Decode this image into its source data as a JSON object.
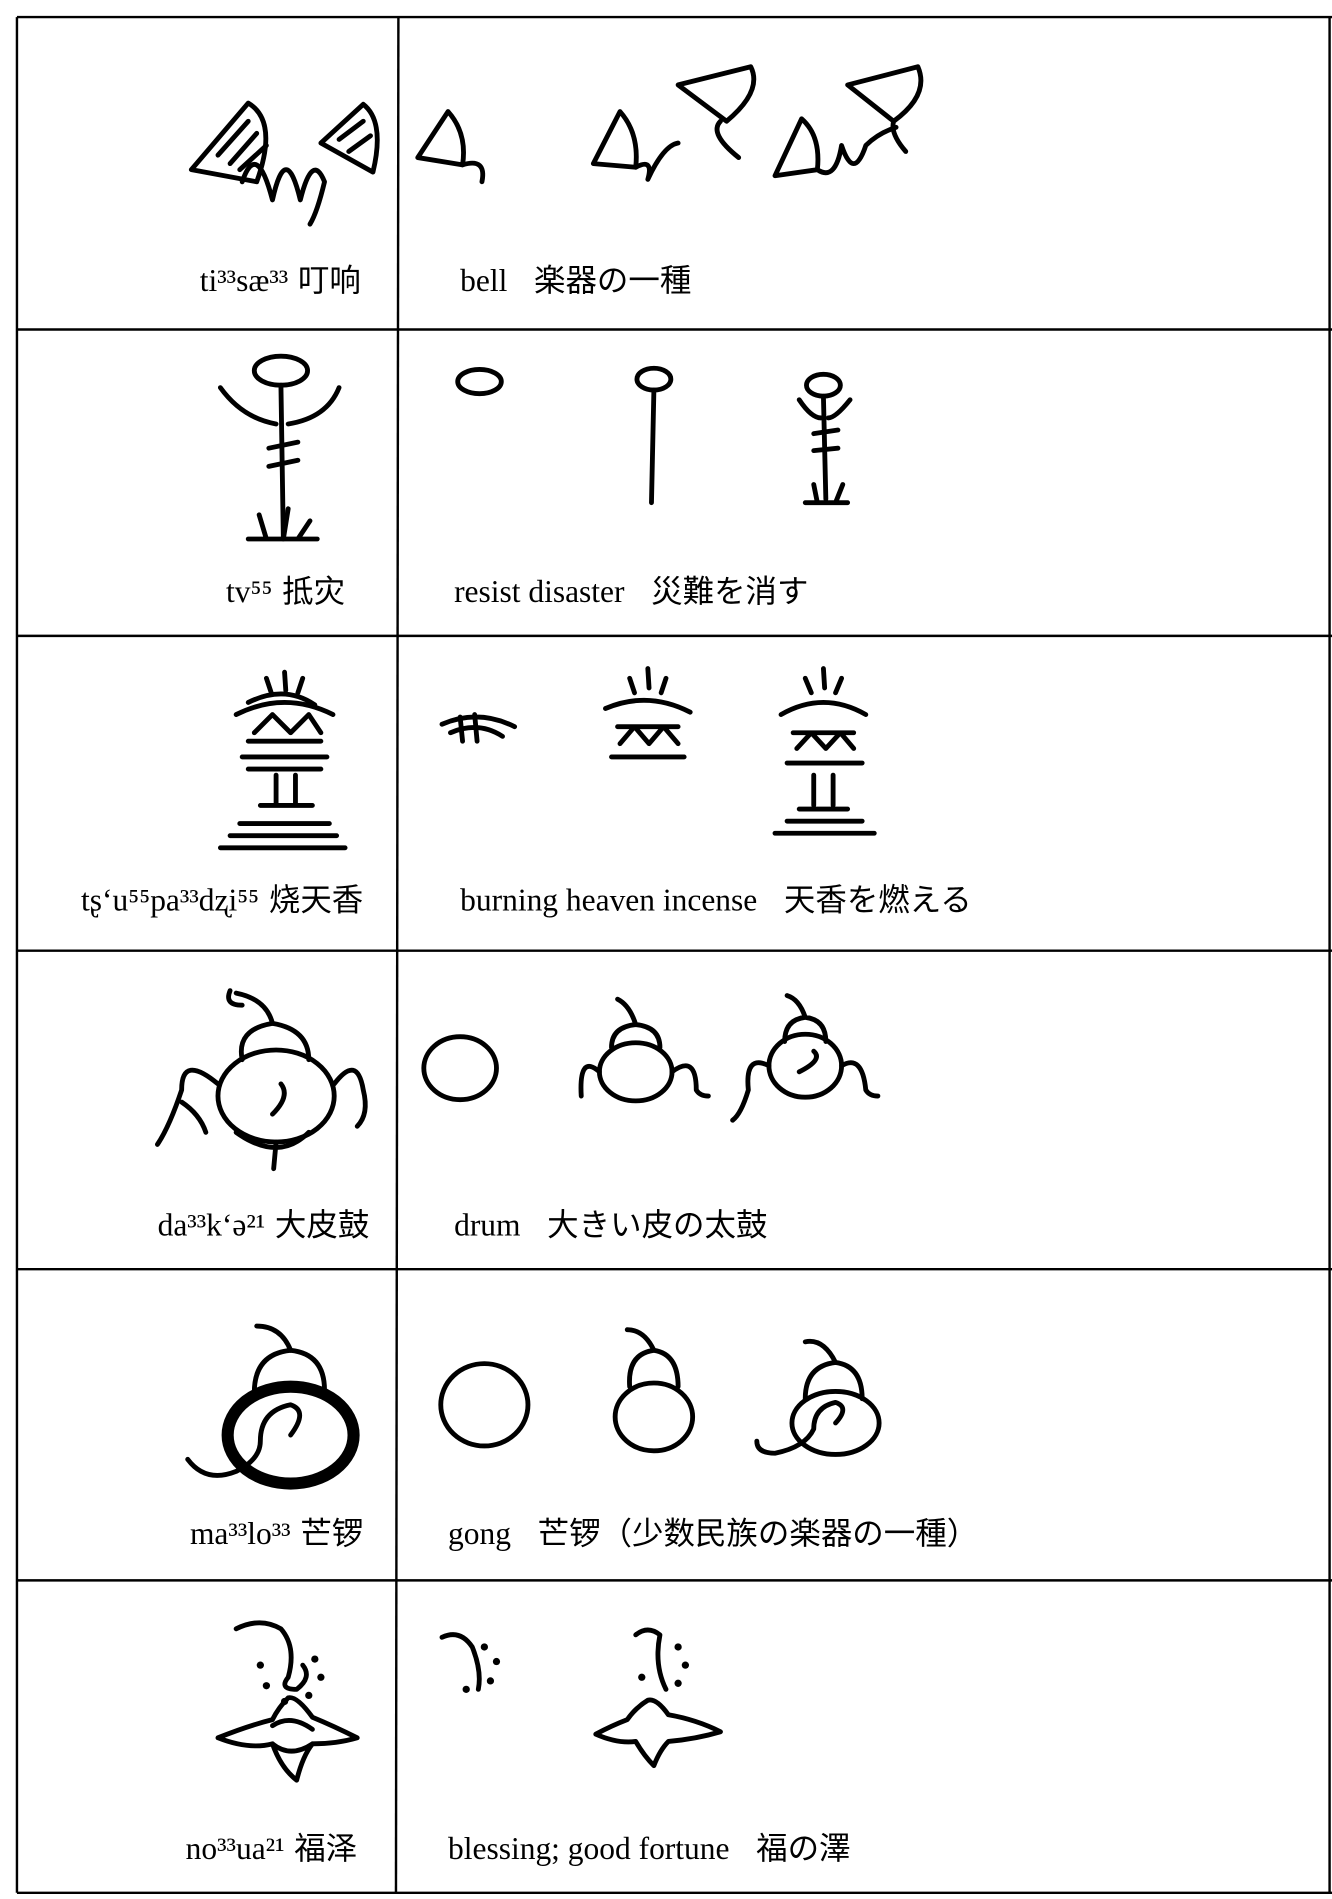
{
  "rows": [
    {
      "pronunciation": "ti³³sæ³³",
      "chinese": "叮响",
      "english": "bell",
      "japanese": "楽器の一種"
    },
    {
      "pronunciation": "tv⁵⁵",
      "chinese": "抵灾",
      "english": "resist disaster",
      "japanese": "災難を消す"
    },
    {
      "pronunciation": "tʂʻu⁵⁵pa³³dʐi⁵⁵",
      "chinese": "烧天香",
      "english": "burning heaven incense",
      "japanese": "天香を燃える"
    },
    {
      "pronunciation": "da³³kʻə²¹",
      "chinese": "大皮鼓",
      "english": "drum",
      "japanese": "大きい皮の太鼓"
    },
    {
      "pronunciation": "ma³³lo³³",
      "chinese": "芒锣",
      "english": "gong",
      "japanese": "芒锣（少数民族の楽器の一種）"
    },
    {
      "pronunciation": "no³³ua²¹",
      "chinese": "福泽",
      "english": "blessing; good fortune",
      "japanese": "福の澤"
    }
  ]
}
